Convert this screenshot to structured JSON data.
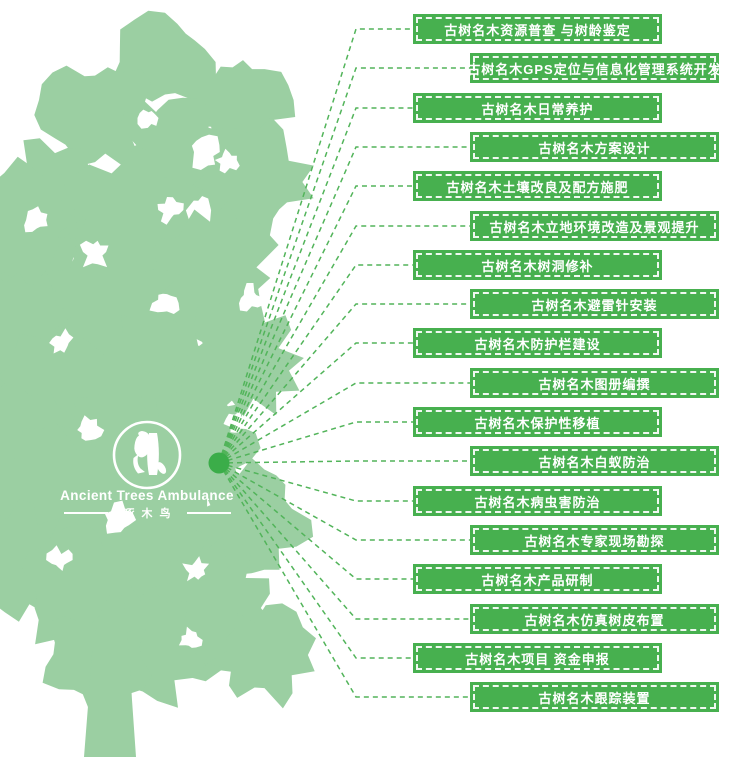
{
  "logo": {
    "name_en": "Ancient Trees Ambulance",
    "name_cn": "啄木鸟",
    "mark": "woodpecker-on-tree-emblem"
  },
  "diagram": {
    "services": [
      {
        "label": "古树名木资源普查 与树龄鉴定"
      },
      {
        "label": "古树名木GPS定位与信息化管理系统开发"
      },
      {
        "label": "古树名木日常养护"
      },
      {
        "label": "古树名木方案设计"
      },
      {
        "label": "古树名木土壤改良及配方施肥"
      },
      {
        "label": "古树名木立地环境改造及景观提升"
      },
      {
        "label": "古树名木树洞修补"
      },
      {
        "label": "古树名木避雷针安装"
      },
      {
        "label": "古树名木防护栏建设"
      },
      {
        "label": "古树名木图册编撰"
      },
      {
        "label": "古树名木保护性移植"
      },
      {
        "label": "古树名木白蚁防治"
      },
      {
        "label": "古树名木病虫害防治"
      },
      {
        "label": "古树名木专家现场勘探"
      },
      {
        "label": "古树名木产品研制"
      },
      {
        "label": "古树名木仿真树皮布置"
      },
      {
        "label": "古树名木项目 资金申报"
      },
      {
        "label": "古树名木跟踪装置"
      }
    ]
  },
  "colors": {
    "tree_green": "#9BCFA2",
    "box_green": "#47B04F",
    "line_green": "#52B45A",
    "hub_green": "#3BAD49",
    "text_white": "#FFFFFF"
  }
}
